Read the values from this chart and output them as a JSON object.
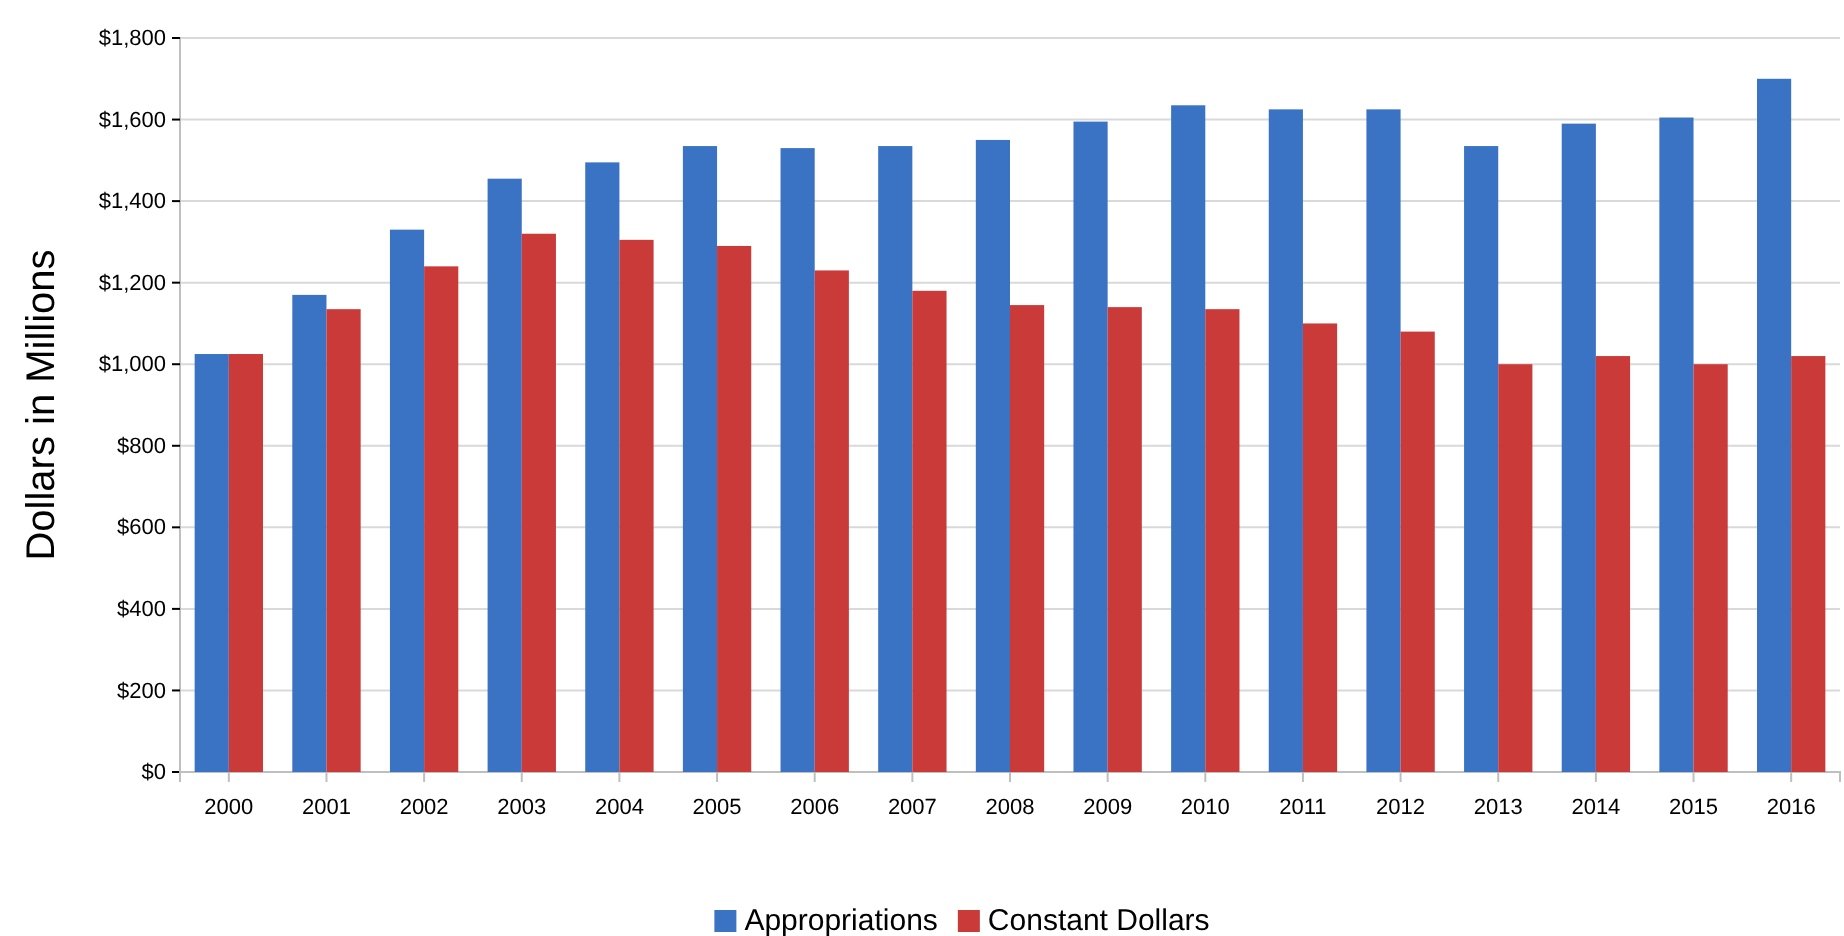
{
  "chart_data": {
    "type": "bar",
    "ylabel": "Dollars in Millions",
    "categories": [
      "2000",
      "2001",
      "2002",
      "2003",
      "2004",
      "2005",
      "2006",
      "2007",
      "2008",
      "2009",
      "2010",
      "2011",
      "2012",
      "2013",
      "2014",
      "2015",
      "2016"
    ],
    "series": [
      {
        "name": "Appropriations",
        "color": "#3b73c4",
        "values": [
          1025,
          1170,
          1330,
          1455,
          1495,
          1535,
          1530,
          1535,
          1550,
          1595,
          1635,
          1625,
          1625,
          1535,
          1590,
          1605,
          1700
        ]
      },
      {
        "name": "Constant Dollars",
        "color": "#c93a38",
        "values": [
          1025,
          1135,
          1240,
          1320,
          1305,
          1290,
          1230,
          1180,
          1145,
          1140,
          1135,
          1100,
          1080,
          1000,
          1020,
          1000,
          1020
        ]
      }
    ],
    "ylim": [
      0,
      1800
    ],
    "yticks": [
      {
        "value": 0,
        "label": "$0"
      },
      {
        "value": 200,
        "label": "$200"
      },
      {
        "value": 400,
        "label": "$400"
      },
      {
        "value": 600,
        "label": "$600"
      },
      {
        "value": 800,
        "label": "$800"
      },
      {
        "value": 1000,
        "label": "$1,000"
      },
      {
        "value": 1200,
        "label": "$1,200"
      },
      {
        "value": 1400,
        "label": "$1,400"
      },
      {
        "value": 1600,
        "label": "$1,600"
      },
      {
        "value": 1800,
        "label": "$1,800"
      }
    ],
    "grid": "y",
    "legend": "bottom"
  }
}
